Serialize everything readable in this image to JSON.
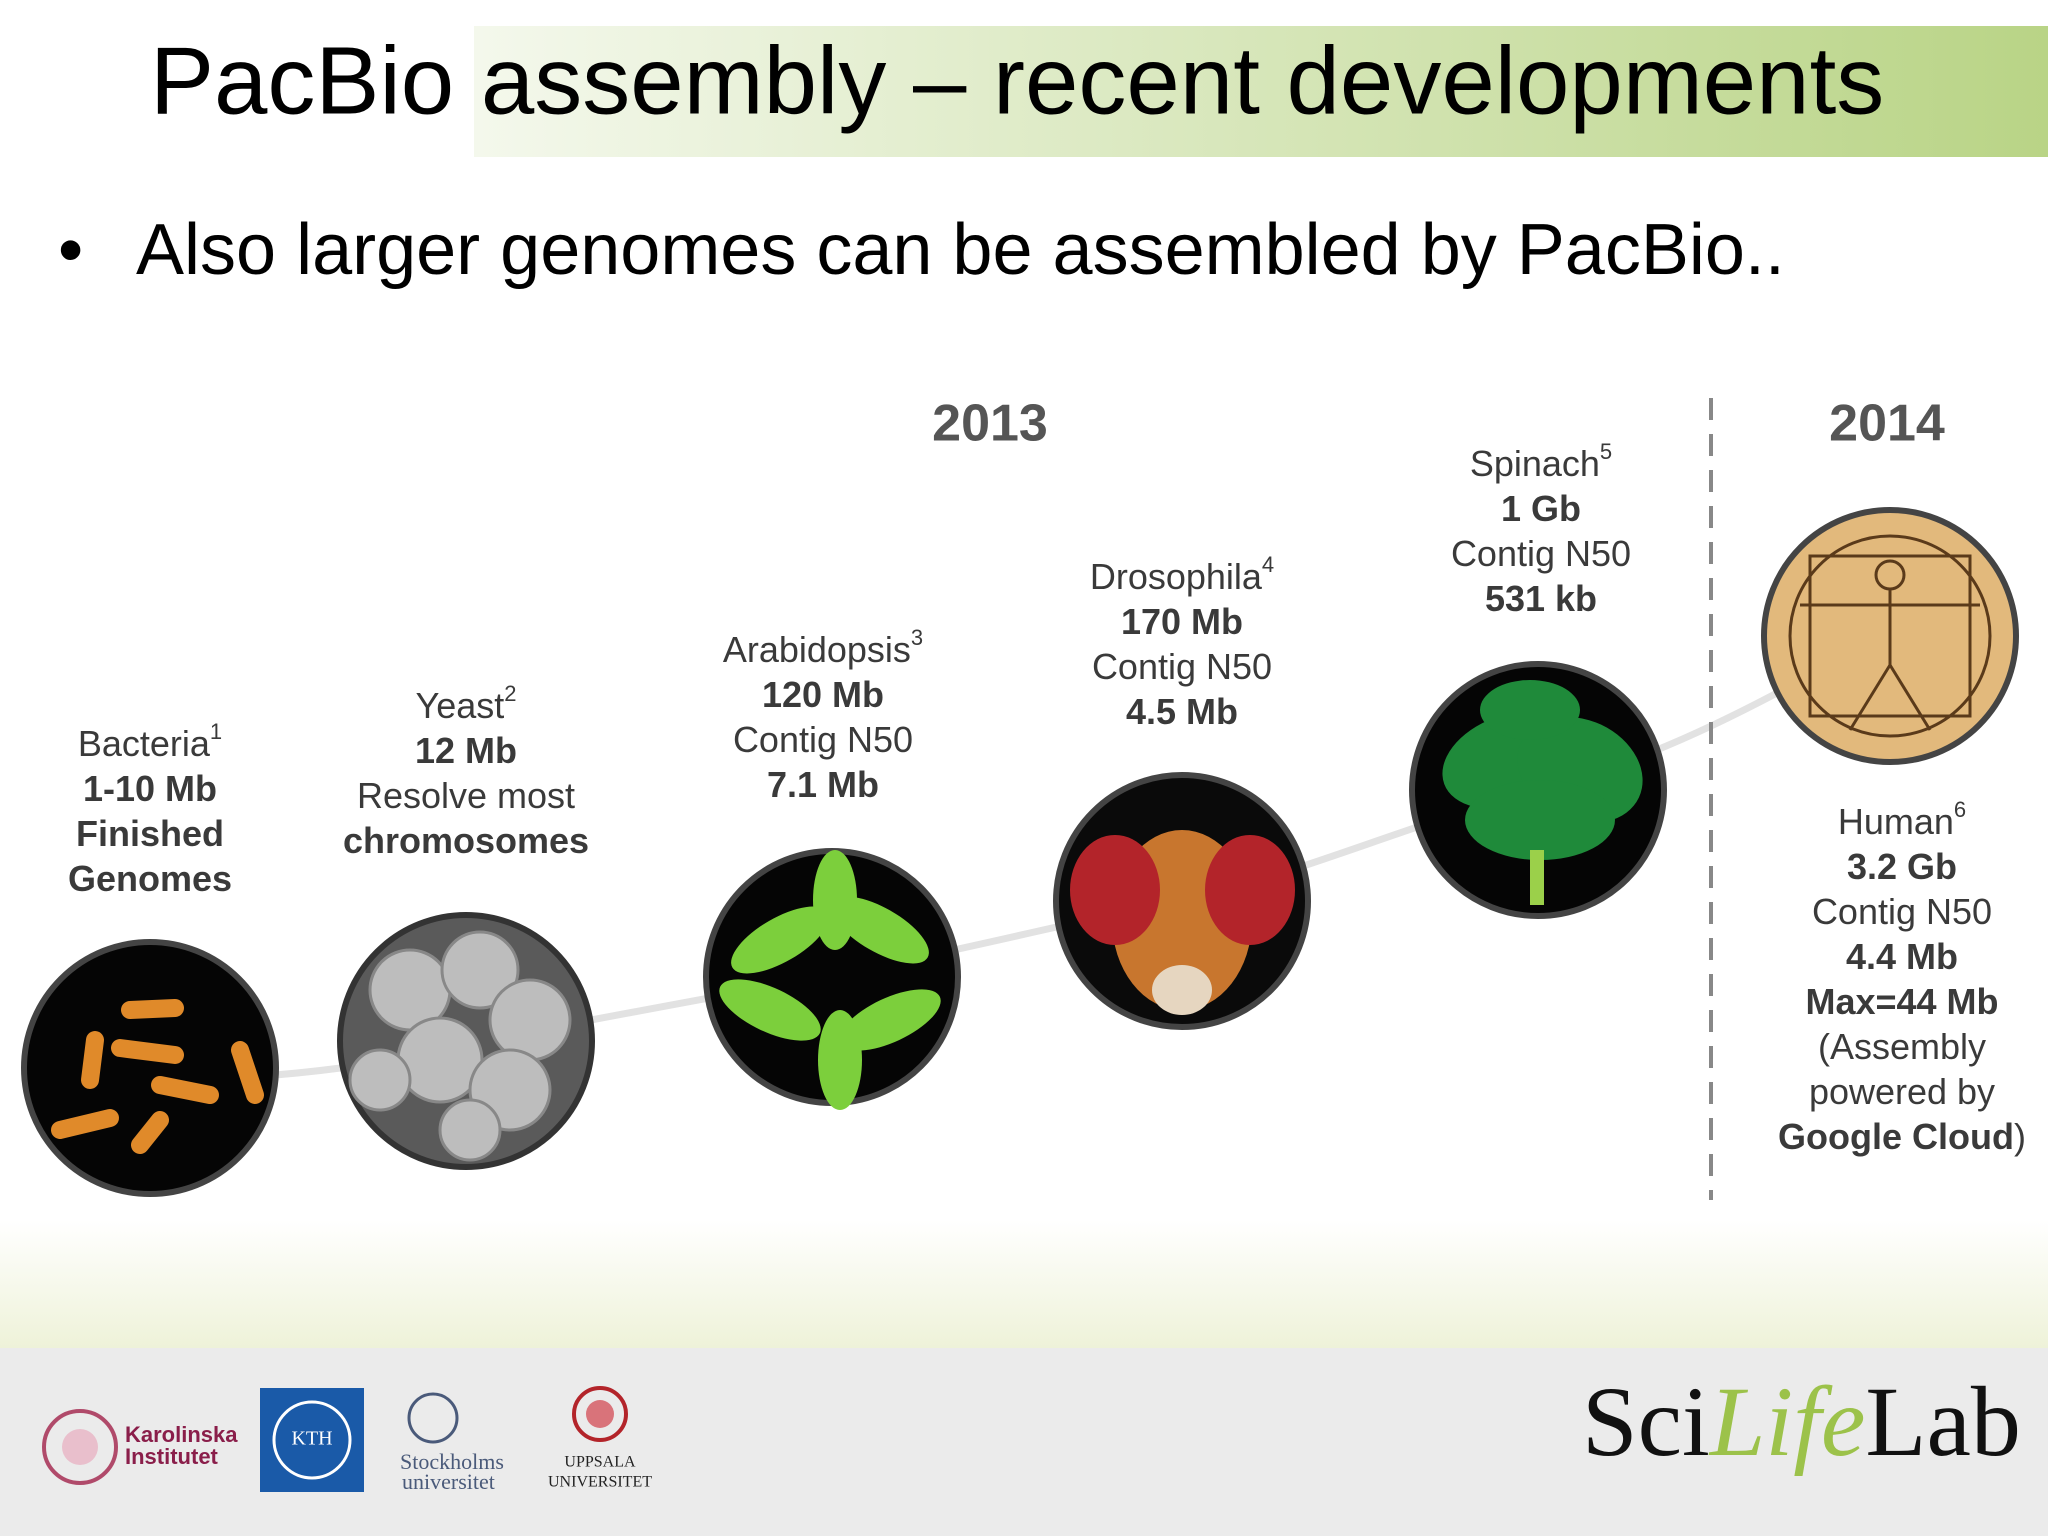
{
  "title": "PacBio assembly – recent developments",
  "bullet": "Also larger genomes can be assembled by PacBio..",
  "timeline": {
    "years": [
      "2013",
      "2014"
    ],
    "items": [
      {
        "name": "Bacteria",
        "note": "1",
        "lines": [
          {
            "text": "1-10 Mb",
            "bold": true
          },
          {
            "text": "Finished",
            "bold": true
          },
          {
            "text": "Genomes",
            "bold": true
          }
        ]
      },
      {
        "name": "Yeast",
        "note": "2",
        "lines": [
          {
            "text": "12 Mb",
            "bold": true
          },
          {
            "text": "Resolve most",
            "bold": false
          },
          {
            "text": "chromosomes",
            "bold": true
          }
        ]
      },
      {
        "name": "Arabidopsis",
        "note": "3",
        "lines": [
          {
            "text": "120 Mb",
            "bold": true
          },
          {
            "text": "Contig N50",
            "bold": false
          },
          {
            "text": "7.1 Mb",
            "bold": true
          }
        ]
      },
      {
        "name": "Drosophila",
        "note": "4",
        "lines": [
          {
            "text": "170 Mb",
            "bold": true
          },
          {
            "text": "Contig N50",
            "bold": false
          },
          {
            "text": "4.5 Mb",
            "bold": true
          }
        ]
      },
      {
        "name": "Spinach",
        "note": "5",
        "lines": [
          {
            "text": "1 Gb",
            "bold": true
          },
          {
            "text": "Contig N50",
            "bold": false
          },
          {
            "text": "531 kb",
            "bold": true
          }
        ]
      },
      {
        "name": "Human",
        "note": "6",
        "lines": [
          {
            "text": "3.2 Gb",
            "bold": true
          },
          {
            "text": "Contig N50",
            "bold": false
          },
          {
            "text": "4.4 Mb",
            "bold": true
          },
          {
            "text": "Max=44 Mb",
            "bold": true
          },
          {
            "text": "(Assembly",
            "bold": false
          },
          {
            "text": "powered by",
            "bold": false
          },
          {
            "text": "Google Cloud",
            "bold": true,
            "suffix": ")"
          }
        ]
      }
    ]
  },
  "footer": {
    "karolinska": [
      "Karolinska",
      "Institutet"
    ],
    "kth": "KTH",
    "stockholm": [
      "Stockholms",
      "universitet"
    ],
    "uppsala": [
      "UPPSALA",
      "UNIVERSITET"
    ],
    "scilifelab": [
      "Sci",
      "Life",
      "Lab"
    ]
  }
}
